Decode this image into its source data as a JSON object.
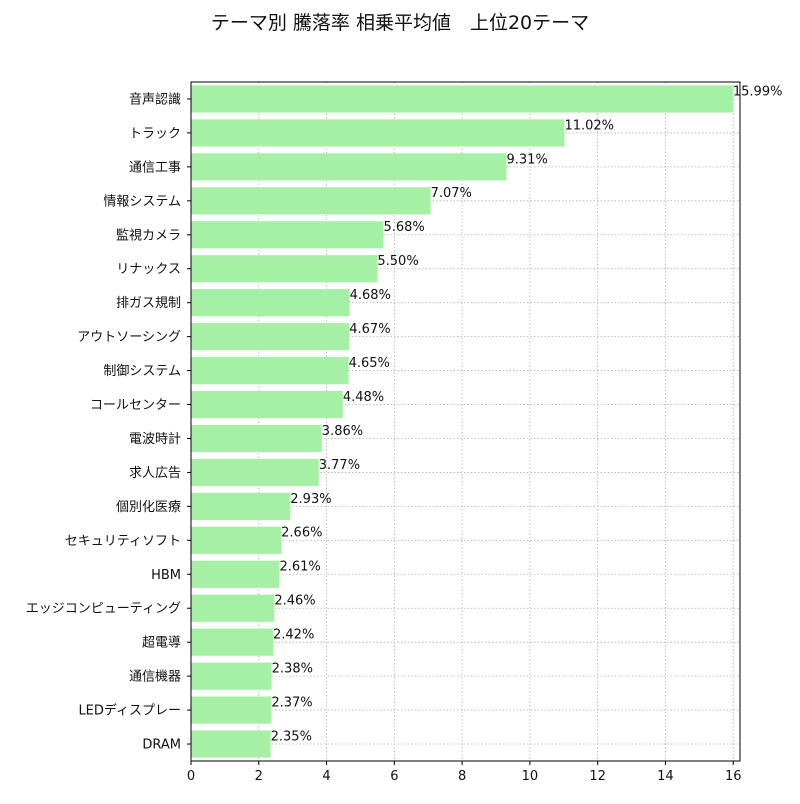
{
  "chart_data": {
    "type": "bar",
    "orientation": "horizontal",
    "title": "テーマ別 騰落率 相乗平均値　上位20テーマ",
    "xlabel": "",
    "ylabel": "",
    "xlim": [
      0,
      16.2
    ],
    "x_ticks": [
      0,
      2,
      4,
      6,
      8,
      10,
      12,
      14,
      16
    ],
    "grid": true,
    "bar_color": "#a6f0a6",
    "categories": [
      "音声認識",
      "トラック",
      "通信工事",
      "情報システム",
      "監視カメラ",
      "リナックス",
      "排ガス規制",
      "アウトソーシング",
      "制御システム",
      "コールセンター",
      "電波時計",
      "求人広告",
      "個別化医療",
      "セキュリティソフト",
      "HBM",
      "エッジコンピューティング",
      "超電導",
      "通信機器",
      "LEDディスプレー",
      "DRAM"
    ],
    "values": [
      15.99,
      11.02,
      9.31,
      7.07,
      5.68,
      5.5,
      4.68,
      4.67,
      4.65,
      4.48,
      3.86,
      3.77,
      2.93,
      2.66,
      2.61,
      2.46,
      2.42,
      2.38,
      2.37,
      2.35
    ],
    "value_labels": [
      "15.99%",
      "11.02%",
      "9.31%",
      "7.07%",
      "5.68%",
      "5.50%",
      "4.68%",
      "4.67%",
      "4.65%",
      "4.48%",
      "3.86%",
      "3.77%",
      "2.93%",
      "2.66%",
      "2.61%",
      "2.46%",
      "2.42%",
      "2.38%",
      "2.37%",
      "2.35%"
    ]
  }
}
